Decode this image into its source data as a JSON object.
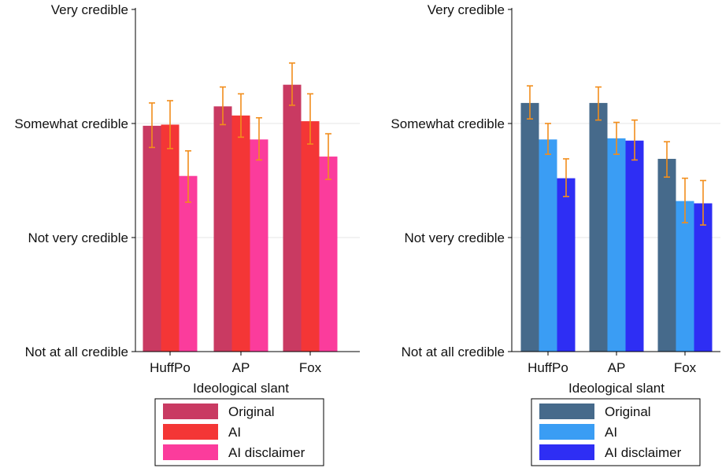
{
  "chart_data": [
    {
      "type": "bar",
      "xlabel": "Ideological slant",
      "ylabel": "",
      "categories": [
        "HuffPo",
        "AP",
        "Fox"
      ],
      "y_ticks": [
        "Not at all credible",
        "Not very credible",
        "Somewhat credible",
        "Very credible"
      ],
      "ylim": [
        1,
        4
      ],
      "grid": true,
      "legend_position": "bottom",
      "error_bar_color": "#f28e1c",
      "series": [
        {
          "name": "Original",
          "color": "#c93a62",
          "values": [
            2.98,
            3.15,
            3.34
          ],
          "ci_low": [
            2.79,
            2.99,
            3.16
          ],
          "ci_high": [
            3.18,
            3.32,
            3.53
          ]
        },
        {
          "name": "AI",
          "color": "#f43636",
          "values": [
            2.99,
            3.07,
            3.02
          ],
          "ci_low": [
            2.78,
            2.88,
            2.82
          ],
          "ci_high": [
            3.2,
            3.26,
            3.26
          ]
        },
        {
          "name": "AI disclaimer",
          "color": "#fb3c9c",
          "values": [
            2.54,
            2.86,
            2.71
          ],
          "ci_low": [
            2.31,
            2.68,
            2.51
          ],
          "ci_high": [
            2.76,
            3.05,
            2.91
          ]
        }
      ]
    },
    {
      "type": "bar",
      "xlabel": "Ideological slant",
      "ylabel": "",
      "categories": [
        "HuffPo",
        "AP",
        "Fox"
      ],
      "y_ticks": [
        "Not at all credible",
        "Not very credible",
        "Somewhat credible",
        "Very credible"
      ],
      "ylim": [
        1,
        4
      ],
      "grid": true,
      "legend_position": "bottom",
      "error_bar_color": "#f28e1c",
      "series": [
        {
          "name": "Original",
          "color": "#466a8b",
          "values": [
            3.18,
            3.18,
            2.69
          ],
          "ci_low": [
            3.04,
            3.03,
            2.53
          ],
          "ci_high": [
            3.33,
            3.32,
            2.84
          ]
        },
        {
          "name": "AI",
          "color": "#3a9df4",
          "values": [
            2.86,
            2.87,
            2.32
          ],
          "ci_low": [
            2.73,
            2.73,
            2.13
          ],
          "ci_high": [
            3.0,
            3.01,
            2.52
          ]
        },
        {
          "name": "AI disclaimer",
          "color": "#2e2ef4",
          "values": [
            2.52,
            2.85,
            2.3
          ],
          "ci_low": [
            2.36,
            2.68,
            2.11
          ],
          "ci_high": [
            2.69,
            3.03,
            2.5
          ]
        }
      ]
    }
  ]
}
